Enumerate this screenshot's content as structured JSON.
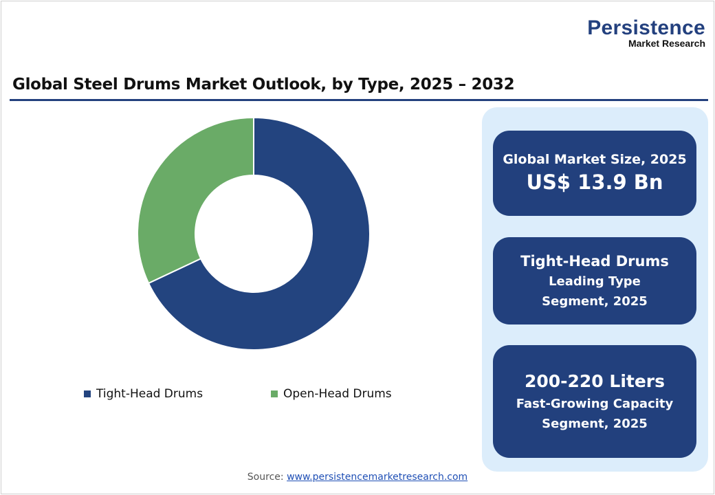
{
  "logo": {
    "line1": "Persistence",
    "line2": "Market Research"
  },
  "title": "Global Steel Drums Market Outlook, by Type, 2025 – 2032",
  "chart_data": {
    "type": "pie",
    "variant": "donut",
    "title": "Global Steel Drums Market Outlook, by Type, 2025 – 2032",
    "categories": [
      "Tight-Head Drums",
      "Open-Head Drums"
    ],
    "values": [
      68,
      32
    ],
    "colors": [
      "#23447f",
      "#6aab67"
    ],
    "legend": "bottom"
  },
  "cards": [
    {
      "line1": "Global Market Size, 2025",
      "line2": "US$ 13.9 Bn"
    },
    {
      "line1": "Tight-Head Drums",
      "line2": "Leading Type",
      "line3": "Segment, 2025"
    },
    {
      "line1": "200-220 Liters",
      "line2": "Fast-Growing Capacity",
      "line3": "Segment, 2025"
    }
  ],
  "source": {
    "label": "Source:",
    "link": "www.persistencemarketresearch.com"
  }
}
